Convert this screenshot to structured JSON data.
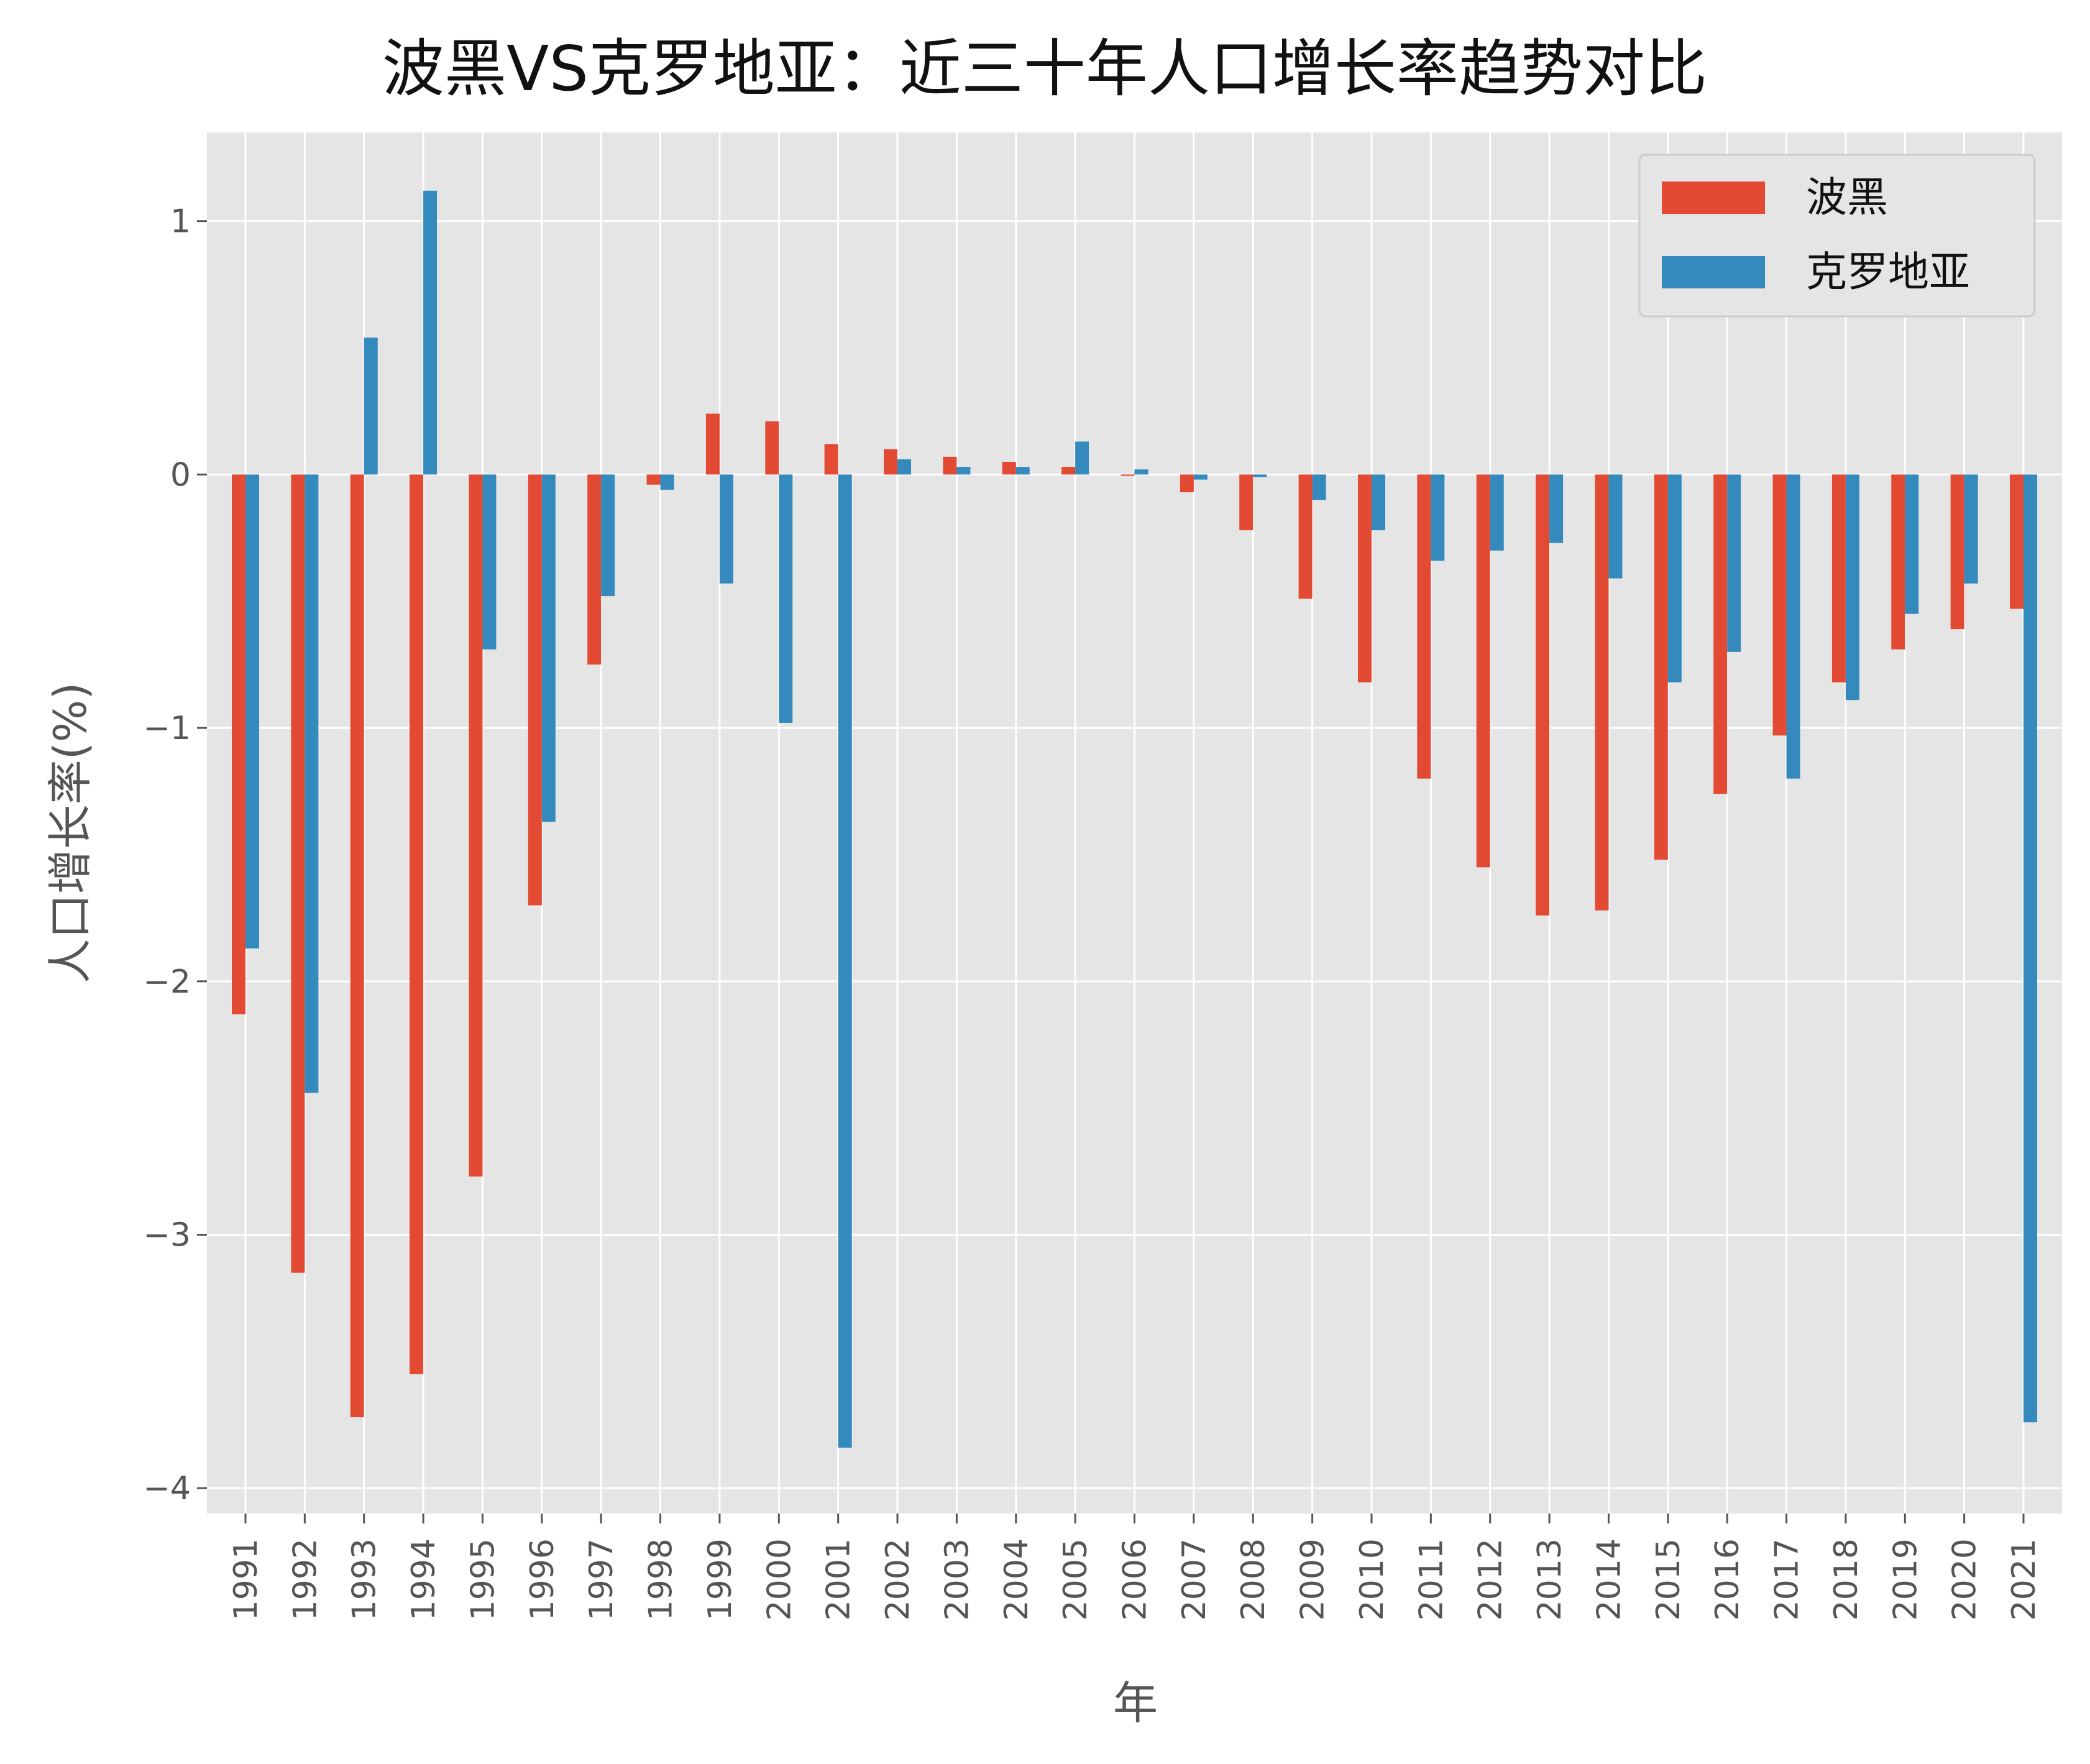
{
  "chart_data": {
    "type": "bar",
    "title": "波黑VS克罗地亚：近三十年人口增长率趋势对比",
    "xlabel": "年",
    "ylabel": "人口增长率(%)",
    "ylim": [
      -4.1,
      1.35
    ],
    "yticks": [
      1,
      0,
      -1,
      -2,
      -3,
      -4
    ],
    "ytick_labels": [
      "1",
      "0",
      "−1",
      "−2",
      "−3",
      "−4"
    ],
    "grid": true,
    "legend_position": "top-right",
    "categories": [
      "1991",
      "1992",
      "1993",
      "1994",
      "1995",
      "1996",
      "1997",
      "1998",
      "1999",
      "2000",
      "2001",
      "2002",
      "2003",
      "2004",
      "2005",
      "2006",
      "2007",
      "2008",
      "2009",
      "2010",
      "2011",
      "2012",
      "2013",
      "2014",
      "2015",
      "2016",
      "2017",
      "2018",
      "2019",
      "2020",
      "2021"
    ],
    "series": [
      {
        "name": "波黑",
        "color": "#E24A33",
        "values": [
          -2.13,
          -3.15,
          -3.72,
          -3.55,
          -2.77,
          -1.7,
          -0.75,
          -0.04,
          0.24,
          0.21,
          0.12,
          0.1,
          0.07,
          0.05,
          0.03,
          -0.005,
          -0.07,
          -0.22,
          -0.49,
          -0.82,
          -1.2,
          -1.55,
          -1.74,
          -1.72,
          -1.52,
          -1.26,
          -1.03,
          -0.82,
          -0.69,
          -0.61,
          -0.53
        ]
      },
      {
        "name": "克罗地亚",
        "color": "#348ABD",
        "values": [
          -1.87,
          -2.44,
          0.54,
          1.12,
          -0.69,
          -1.37,
          -0.48,
          -0.06,
          -0.43,
          -0.98,
          -3.84,
          0.06,
          0.03,
          0.03,
          0.13,
          0.02,
          -0.02,
          -0.01,
          -0.1,
          -0.22,
          -0.34,
          -0.3,
          -0.27,
          -0.41,
          -0.82,
          -0.7,
          -1.2,
          -0.89,
          -0.55,
          -0.43,
          -3.74
        ]
      }
    ]
  },
  "style": {
    "plot_background": "#E5E5E5",
    "grid_color": "#FFFFFF",
    "legend_background": "#E5E5E5",
    "legend_border": "#CCCCCC"
  }
}
